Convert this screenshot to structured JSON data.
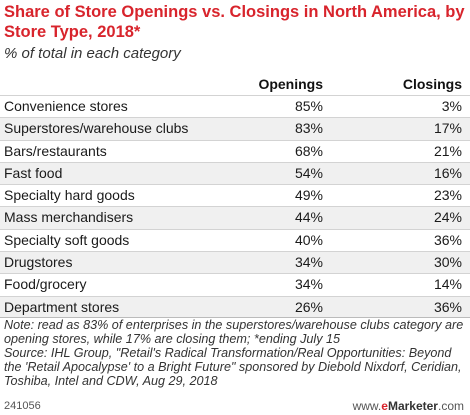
{
  "chart_data": {
    "type": "table",
    "title": "Share of Store Openings vs. Closings in North America, by Store Type, 2018*",
    "subtitle": "% of total in each category",
    "columns": [
      "Openings",
      "Closings"
    ],
    "rows": [
      {
        "label": "Convenience stores",
        "openings": "85%",
        "closings": "3%"
      },
      {
        "label": "Superstores/warehouse clubs",
        "openings": "83%",
        "closings": "17%"
      },
      {
        "label": "Bars/restaurants",
        "openings": "68%",
        "closings": "21%"
      },
      {
        "label": "Fast food",
        "openings": "54%",
        "closings": "16%"
      },
      {
        "label": "Specialty hard goods",
        "openings": "49%",
        "closings": "23%"
      },
      {
        "label": "Mass merchandisers",
        "openings": "44%",
        "closings": "24%"
      },
      {
        "label": "Specialty soft goods",
        "openings": "40%",
        "closings": "36%"
      },
      {
        "label": "Drugstores",
        "openings": "34%",
        "closings": "30%"
      },
      {
        "label": "Food/grocery",
        "openings": "34%",
        "closings": "14%"
      },
      {
        "label": "Department stores",
        "openings": "26%",
        "closings": "36%"
      }
    ],
    "note": "Note: read as 83% of enterprises in the superstores/warehouse clubs category are opening stores, while 17% are closing them; *ending July 15",
    "source": "Source: IHL Group, \"Retail's Radical Transformation/Real Opportunities: Beyond the 'Retail Apocalypse' to a Bright Future\" sponsored by Diebold Nixdorf, Ceridian, Toshiba, Intel and CDW, Aug 29, 2018"
  },
  "footer": {
    "chart_id": "241056",
    "brand_prefix": "www.",
    "brand_e": "e",
    "brand_name": "Marketer",
    "brand_suffix": ".com"
  },
  "colors": {
    "title": "#d8242c",
    "row_alt": "#f0f0f0"
  }
}
